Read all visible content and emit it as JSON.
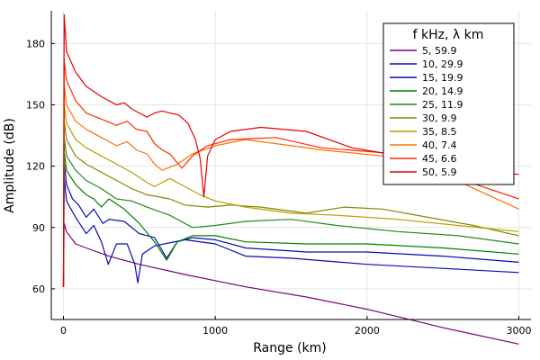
{
  "chart_data": {
    "type": "line",
    "xlabel": "Range (km)",
    "ylabel": "Amplitude (dB)",
    "xlim": [
      -80,
      3080
    ],
    "ylim": [
      45,
      196
    ],
    "xticks": [
      0,
      1000,
      2000,
      3000
    ],
    "yticks": [
      60,
      90,
      120,
      150,
      180
    ],
    "grid": true,
    "legend": {
      "title": "f kHz, λ km",
      "placement": "top-right"
    },
    "series": [
      {
        "name": "5,  59.9",
        "color": "#7d007d",
        "points": [
          [
            0,
            61
          ],
          [
            5,
            92
          ],
          [
            20,
            88
          ],
          [
            80,
            82
          ],
          [
            150,
            80
          ],
          [
            300,
            76
          ],
          [
            500,
            72
          ],
          [
            800,
            67
          ],
          [
            1200,
            61
          ],
          [
            1600,
            56
          ],
          [
            2000,
            50
          ],
          [
            2500,
            41
          ],
          [
            3000,
            33
          ]
        ]
      },
      {
        "name": "10,  29.9",
        "color": "#0a0ab4",
        "points": [
          [
            0,
            61
          ],
          [
            5,
            115
          ],
          [
            20,
            103
          ],
          [
            80,
            95
          ],
          [
            150,
            87
          ],
          [
            200,
            91
          ],
          [
            250,
            83
          ],
          [
            295,
            72
          ],
          [
            350,
            82
          ],
          [
            420,
            82
          ],
          [
            470,
            72
          ],
          [
            490,
            63
          ],
          [
            520,
            77
          ],
          [
            600,
            81
          ],
          [
            800,
            84
          ],
          [
            1000,
            82
          ],
          [
            1200,
            76
          ],
          [
            1500,
            75
          ],
          [
            2000,
            72
          ],
          [
            2500,
            70
          ],
          [
            3000,
            68
          ]
        ]
      },
      {
        "name": "15,  19.9",
        "color": "#0a0ab4",
        "points": [
          [
            0,
            61
          ],
          [
            5,
            122
          ],
          [
            20,
            111
          ],
          [
            60,
            104
          ],
          [
            100,
            101
          ],
          [
            150,
            95
          ],
          [
            200,
            99
          ],
          [
            260,
            92
          ],
          [
            300,
            94
          ],
          [
            400,
            93
          ],
          [
            500,
            87
          ],
          [
            600,
            85
          ],
          [
            680,
            75
          ],
          [
            750,
            83
          ],
          [
            850,
            85
          ],
          [
            1000,
            84
          ],
          [
            1200,
            80
          ],
          [
            1600,
            78
          ],
          [
            2000,
            78
          ],
          [
            2500,
            76
          ],
          [
            3000,
            73
          ]
        ]
      },
      {
        "name": "20,  14.9",
        "color": "#008000",
        "points": [
          [
            0,
            61
          ],
          [
            5,
            127
          ],
          [
            20,
            118
          ],
          [
            80,
            111
          ],
          [
            150,
            106
          ],
          [
            200,
            104
          ],
          [
            250,
            100
          ],
          [
            300,
            104
          ],
          [
            400,
            99
          ],
          [
            500,
            92
          ],
          [
            600,
            83
          ],
          [
            680,
            74
          ],
          [
            750,
            83
          ],
          [
            850,
            86
          ],
          [
            1000,
            86
          ],
          [
            1200,
            83
          ],
          [
            1600,
            82
          ],
          [
            2000,
            82
          ],
          [
            2500,
            80
          ],
          [
            3000,
            77
          ]
        ]
      },
      {
        "name": "25,  11.9",
        "color": "#228b22",
        "points": [
          [
            0,
            61
          ],
          [
            5,
            134
          ],
          [
            20,
            125
          ],
          [
            80,
            118
          ],
          [
            150,
            113
          ],
          [
            250,
            109
          ],
          [
            350,
            104
          ],
          [
            450,
            103
          ],
          [
            550,
            100
          ],
          [
            700,
            96
          ],
          [
            850,
            90
          ],
          [
            1000,
            91
          ],
          [
            1200,
            93
          ],
          [
            1500,
            94
          ],
          [
            1800,
            91
          ],
          [
            2200,
            88
          ],
          [
            2600,
            86
          ],
          [
            3000,
            82
          ]
        ]
      },
      {
        "name": "30,  9.9",
        "color": "#7a8c00",
        "points": [
          [
            0,
            61
          ],
          [
            5,
            142
          ],
          [
            20,
            133
          ],
          [
            80,
            125
          ],
          [
            150,
            121
          ],
          [
            250,
            117
          ],
          [
            350,
            113
          ],
          [
            450,
            109
          ],
          [
            550,
            106
          ],
          [
            700,
            104
          ],
          [
            800,
            101
          ],
          [
            950,
            100
          ],
          [
            1100,
            101
          ],
          [
            1300,
            100
          ],
          [
            1600,
            97
          ],
          [
            1850,
            100
          ],
          [
            2100,
            99
          ],
          [
            2400,
            95
          ],
          [
            2700,
            91
          ],
          [
            3000,
            86
          ]
        ]
      },
      {
        "name": "35,  8.5",
        "color": "#b8a000",
        "points": [
          [
            0,
            61
          ],
          [
            5,
            150
          ],
          [
            20,
            141
          ],
          [
            80,
            133
          ],
          [
            150,
            129
          ],
          [
            250,
            125
          ],
          [
            350,
            121
          ],
          [
            450,
            117
          ],
          [
            550,
            112
          ],
          [
            600,
            110
          ],
          [
            700,
            114
          ],
          [
            800,
            110
          ],
          [
            900,
            106
          ],
          [
            1000,
            103
          ],
          [
            1200,
            100
          ],
          [
            1500,
            97
          ],
          [
            1800,
            96
          ],
          [
            2200,
            94
          ],
          [
            2600,
            91
          ],
          [
            3000,
            88
          ]
        ]
      },
      {
        "name": "40,  7.4",
        "color": "#ff7000",
        "points": [
          [
            0,
            61
          ],
          [
            5,
            160
          ],
          [
            20,
            150
          ],
          [
            80,
            142
          ],
          [
            150,
            138
          ],
          [
            250,
            134
          ],
          [
            350,
            130
          ],
          [
            420,
            132
          ],
          [
            480,
            128
          ],
          [
            550,
            126
          ],
          [
            600,
            121
          ],
          [
            650,
            118
          ],
          [
            750,
            121
          ],
          [
            850,
            126
          ],
          [
            1000,
            130
          ],
          [
            1200,
            133
          ],
          [
            1400,
            131
          ],
          [
            1700,
            128
          ],
          [
            2100,
            125
          ],
          [
            2500,
            116
          ],
          [
            3000,
            99
          ]
        ]
      },
      {
        "name": "45,  6.6",
        "color": "#ff2a00",
        "points": [
          [
            0,
            61
          ],
          [
            5,
            172
          ],
          [
            20,
            162
          ],
          [
            80,
            152
          ],
          [
            150,
            146
          ],
          [
            250,
            143
          ],
          [
            350,
            140
          ],
          [
            420,
            142
          ],
          [
            480,
            138
          ],
          [
            550,
            137
          ],
          [
            600,
            131
          ],
          [
            650,
            128
          ],
          [
            700,
            126
          ],
          [
            780,
            119
          ],
          [
            850,
            125
          ],
          [
            950,
            130
          ],
          [
            1100,
            133
          ],
          [
            1400,
            134
          ],
          [
            1700,
            129
          ],
          [
            2200,
            126
          ],
          [
            2600,
            114
          ],
          [
            3000,
            104
          ]
        ]
      },
      {
        "name": "50,  5.9",
        "color": "#e80000",
        "points": [
          [
            0,
            61
          ],
          [
            5,
            194
          ],
          [
            20,
            176
          ],
          [
            80,
            166
          ],
          [
            150,
            159
          ],
          [
            250,
            154
          ],
          [
            350,
            150
          ],
          [
            400,
            151
          ],
          [
            450,
            148
          ],
          [
            500,
            146
          ],
          [
            550,
            144
          ],
          [
            600,
            146
          ],
          [
            650,
            147
          ],
          [
            700,
            146
          ],
          [
            760,
            145
          ],
          [
            820,
            141
          ],
          [
            870,
            133
          ],
          [
            900,
            124
          ],
          [
            925,
            105
          ],
          [
            950,
            125
          ],
          [
            1000,
            133
          ],
          [
            1100,
            137
          ],
          [
            1300,
            139
          ],
          [
            1600,
            137
          ],
          [
            1900,
            129
          ],
          [
            2300,
            124
          ],
          [
            2700,
            117
          ],
          [
            3000,
            116
          ]
        ]
      }
    ]
  }
}
